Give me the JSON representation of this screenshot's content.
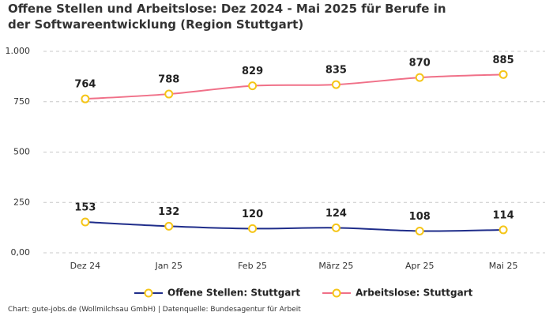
{
  "chart_data": {
    "type": "line",
    "title": "Offene Stellen und Arbeitslose: Dez 2024 - Mai 2025 für Berufe in der Softwareentwicklung (Region Stuttgart)",
    "categories": [
      "Dez 24",
      "Jan 25",
      "Feb 25",
      "März 25",
      "Apr 25",
      "Mai 25"
    ],
    "series": [
      {
        "name": "Offene Stellen: Stuttgart",
        "color": "#1f2d8a",
        "values": [
          153,
          132,
          120,
          124,
          108,
          114
        ]
      },
      {
        "name": "Arbeitslose: Stuttgart",
        "color": "#f07088",
        "values": [
          764,
          788,
          829,
          835,
          870,
          885
        ]
      }
    ],
    "marker_color": "#f5c518",
    "ylim": [
      0,
      1000
    ],
    "yticks": [
      {
        "value": 0,
        "label": "0,00"
      },
      250,
      500,
      750,
      {
        "value": 1000,
        "label": "1.000"
      }
    ],
    "grid": true,
    "legend": "bottom",
    "source": "Chart: gute-jobs.de (Wollmilchsau GmbH) | Datenquelle: Bundesagentur für Arbeit"
  }
}
